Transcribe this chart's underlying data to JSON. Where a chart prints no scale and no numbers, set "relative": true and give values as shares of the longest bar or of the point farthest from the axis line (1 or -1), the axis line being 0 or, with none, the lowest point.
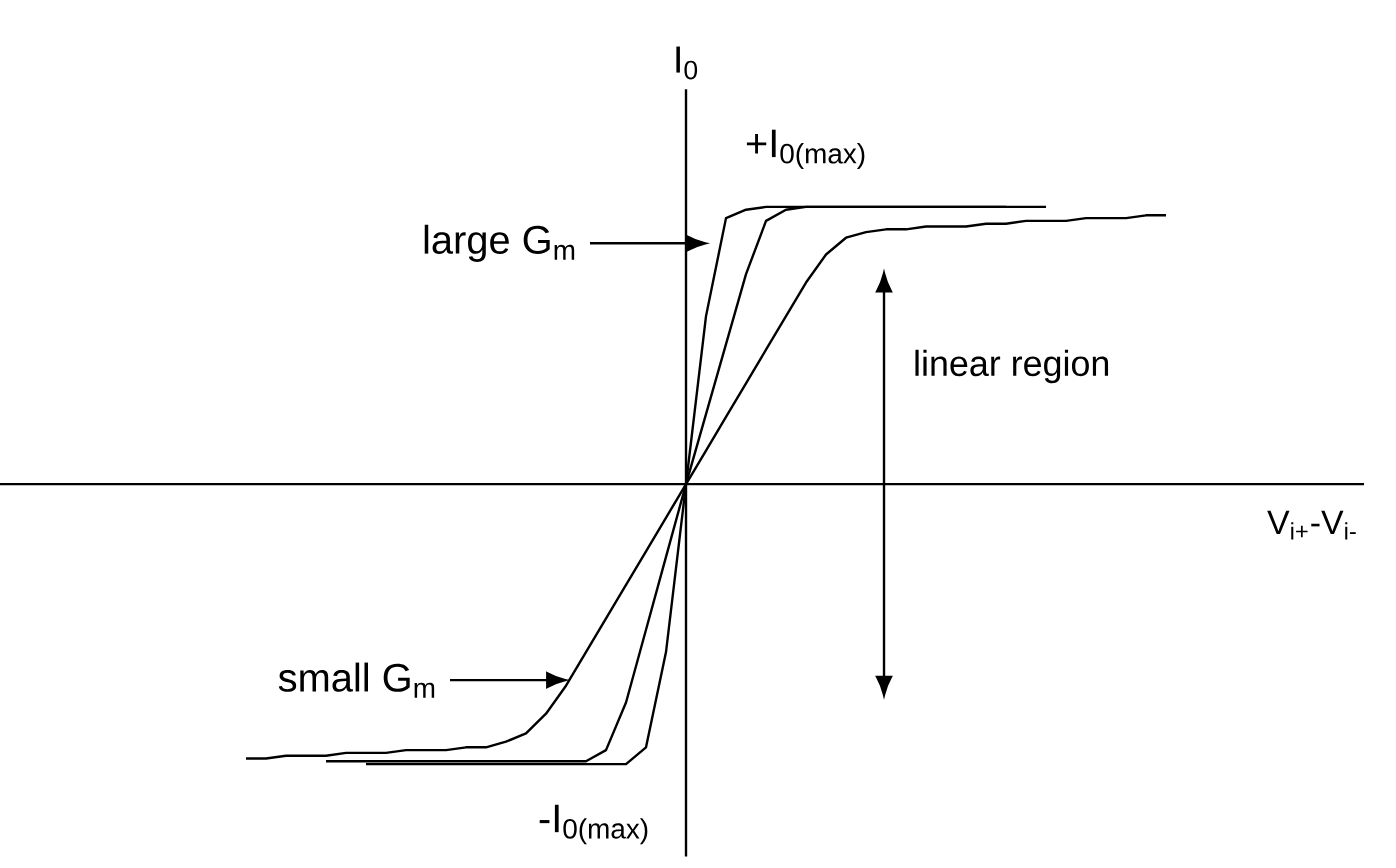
{
  "chart_data": {
    "type": "line",
    "relative": true,
    "xlabel": "V$_{i+}$-V$_{i-}$",
    "ylabel": "I$_{0}$",
    "marker": "none",
    "line_style": "solid",
    "categories": [
      null,
      null,
      null,
      null,
      null,
      null,
      null,
      null,
      null,
      null,
      null,
      null,
      null,
      null,
      null,
      null,
      null,
      null,
      null,
      null,
      null,
      null,
      null,
      null,
      null,
      null,
      null,
      null,
      null,
      null,
      null,
      null,
      null,
      null,
      null,
      null,
      null,
      null,
      null,
      null,
      null,
      null,
      null,
      null,
      null,
      null,
      null
    ],
    "series": [
      {
        "color": "#000000",
        "values": [
          null,
          null,
          null,
          null,
          null,
          null,
          -1.0,
          -1.0,
          -1.0,
          -1.0,
          -1.0,
          -1.0,
          -1.0,
          -1.0,
          -1.0,
          -1.0,
          -1.0,
          -1.0,
          -1.0,
          -1.0,
          -0.94,
          -0.6,
          0,
          0.6,
          0.95,
          0.98,
          0.99,
          0.99,
          0.99,
          0.99,
          0.99,
          0.99,
          0.99,
          0.99,
          0.99,
          0.99,
          0.99,
          0.99,
          0.99,
          null,
          null,
          null,
          null,
          null,
          null,
          null,
          null
        ]
      },
      {
        "color": "#000000",
        "values": [
          null,
          null,
          null,
          null,
          -0.99,
          -0.99,
          -0.99,
          -0.99,
          -0.99,
          -0.99,
          -0.99,
          -0.99,
          -0.99,
          -0.99,
          -0.99,
          -0.99,
          -0.99,
          -0.99,
          -0.95,
          -0.78,
          -0.52,
          -0.26,
          0,
          0.25,
          0.5,
          0.75,
          0.94,
          0.98,
          0.99,
          0.99,
          0.99,
          0.99,
          0.99,
          0.99,
          0.99,
          0.99,
          0.99,
          0.99,
          0.99,
          0.99,
          0.99,
          null,
          null,
          null,
          null,
          null,
          null
        ]
      },
      {
        "color": "#000000",
        "values": [
          -0.98,
          -0.98,
          -0.97,
          -0.97,
          -0.97,
          -0.96,
          -0.96,
          -0.96,
          -0.95,
          -0.95,
          -0.95,
          -0.94,
          -0.94,
          -0.92,
          -0.89,
          -0.82,
          -0.72,
          -0.6,
          -0.48,
          -0.36,
          -0.24,
          -0.12,
          0,
          0.12,
          0.24,
          0.36,
          0.48,
          0.6,
          0.72,
          0.82,
          0.88,
          0.9,
          0.91,
          0.91,
          0.92,
          0.92,
          0.92,
          0.93,
          0.93,
          0.94,
          0.94,
          0.94,
          0.95,
          0.95,
          0.95,
          0.96,
          0.96
        ]
      }
    ],
    "annotations": [
      "+I$_{0(max)}$",
      "-I$_{0(max)}$",
      "large G$_{m}$",
      "small G$_{m}$",
      "linear region"
    ]
  }
}
